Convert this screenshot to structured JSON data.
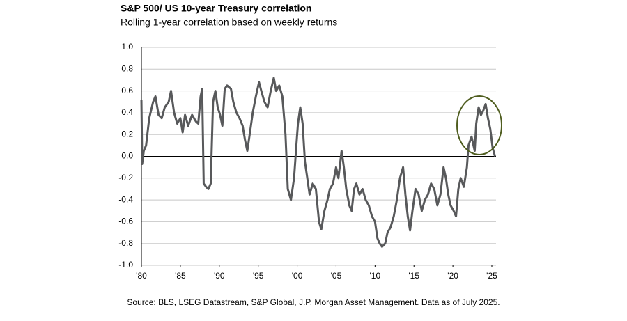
{
  "chart_data": {
    "type": "line",
    "title": "S&P 500/ US 10-year Treasury correlation",
    "subtitle": "Rolling 1-year correlation based on weekly returns",
    "source": "Source: BLS, LSEG Datastream, S&P Global, J.P. Morgan Asset Management. Data as of July 2025.",
    "x": [
      1980.0,
      1980.1,
      1980.3,
      1980.6,
      1981.0,
      1981.5,
      1981.8,
      1982.2,
      1982.6,
      1983.0,
      1983.5,
      1983.8,
      1984.2,
      1984.6,
      1985.0,
      1985.3,
      1985.6,
      1986.0,
      1986.5,
      1987.0,
      1987.3,
      1987.6,
      1987.8,
      1988.0,
      1988.3,
      1988.6,
      1988.9,
      1989.2,
      1989.5,
      1989.8,
      1990.1,
      1990.4,
      1990.7,
      1991.0,
      1991.5,
      1991.8,
      1992.2,
      1992.6,
      1993.0,
      1993.3,
      1993.6,
      1993.9,
      1994.3,
      1994.7,
      1995.1,
      1995.4,
      1995.8,
      1996.2,
      1996.6,
      1997.0,
      1997.3,
      1997.7,
      1998.1,
      1998.5,
      1998.8,
      1999.2,
      1999.6,
      1999.9,
      2000.1,
      2000.4,
      2000.7,
      2001.0,
      2001.3,
      2001.6,
      2002.0,
      2002.4,
      2002.8,
      2003.1,
      2003.5,
      2003.9,
      2004.2,
      2004.6,
      2005.0,
      2005.3,
      2005.7,
      2006.0,
      2006.3,
      2006.7,
      2007.0,
      2007.3,
      2007.6,
      2008.0,
      2008.4,
      2008.8,
      2009.2,
      2009.6,
      2010.0,
      2010.3,
      2010.6,
      2010.9,
      2011.3,
      2011.6,
      2012.0,
      2012.4,
      2012.8,
      2013.2,
      2013.6,
      2013.9,
      2014.2,
      2014.5,
      2014.8,
      2015.2,
      2015.6,
      2016.0,
      2016.4,
      2016.8,
      2017.2,
      2017.6,
      2018.0,
      2018.4,
      2018.8,
      2019.1,
      2019.4,
      2019.7,
      2020.1,
      2020.4,
      2020.7,
      2021.0,
      2021.4,
      2021.8,
      2022.0,
      2022.4,
      2022.8,
      2023.0,
      2023.3,
      2023.6,
      2023.9,
      2024.2,
      2024.5,
      2024.8,
      2025.1,
      2025.4
    ],
    "series": [
      {
        "name": "S&P 500/ US 10-year Treasury correlation",
        "color": "#58595b",
        "values": [
          0.52,
          -0.07,
          0.05,
          0.1,
          0.35,
          0.5,
          0.55,
          0.38,
          0.35,
          0.45,
          0.5,
          0.6,
          0.4,
          0.3,
          0.35,
          0.22,
          0.38,
          0.28,
          0.38,
          0.32,
          0.3,
          0.55,
          0.62,
          -0.25,
          -0.28,
          -0.3,
          -0.25,
          0.5,
          0.6,
          0.45,
          0.38,
          0.28,
          0.62,
          0.65,
          0.62,
          0.5,
          0.4,
          0.35,
          0.28,
          0.15,
          0.05,
          0.2,
          0.4,
          0.55,
          0.68,
          0.6,
          0.5,
          0.45,
          0.6,
          0.72,
          0.6,
          0.65,
          0.55,
          0.2,
          -0.3,
          -0.4,
          -0.2,
          0.1,
          0.3,
          0.45,
          0.3,
          -0.05,
          -0.2,
          -0.35,
          -0.25,
          -0.3,
          -0.6,
          -0.67,
          -0.5,
          -0.4,
          -0.3,
          -0.25,
          -0.1,
          -0.2,
          0.05,
          -0.1,
          -0.3,
          -0.45,
          -0.5,
          -0.3,
          -0.25,
          -0.35,
          -0.3,
          -0.4,
          -0.45,
          -0.55,
          -0.6,
          -0.75,
          -0.8,
          -0.83,
          -0.8,
          -0.7,
          -0.65,
          -0.55,
          -0.4,
          -0.2,
          -0.1,
          -0.35,
          -0.55,
          -0.68,
          -0.5,
          -0.3,
          -0.35,
          -0.5,
          -0.4,
          -0.35,
          -0.25,
          -0.3,
          -0.45,
          -0.35,
          -0.1,
          -0.2,
          -0.35,
          -0.45,
          -0.5,
          -0.55,
          -0.3,
          -0.2,
          -0.28,
          -0.1,
          0.1,
          0.18,
          0.05,
          0.3,
          0.45,
          0.38,
          0.42,
          0.48,
          0.35,
          0.25,
          0.08,
          0.0
        ]
      }
    ],
    "xlim": [
      1980,
      2025
    ],
    "xticks": [
      {
        "value": 1980,
        "label": "'80"
      },
      {
        "value": 1985,
        "label": "'85"
      },
      {
        "value": 1990,
        "label": "'90"
      },
      {
        "value": 1995,
        "label": "'95"
      },
      {
        "value": 2000,
        "label": "'00"
      },
      {
        "value": 2005,
        "label": "'05"
      },
      {
        "value": 2010,
        "label": "'10"
      },
      {
        "value": 2015,
        "label": "'15"
      },
      {
        "value": 2020,
        "label": "'20"
      },
      {
        "value": 2025,
        "label": "'25"
      }
    ],
    "ylim": [
      -1,
      1
    ],
    "yticks": [
      {
        "value": 1,
        "label": "1.0"
      },
      0.8,
      0.6,
      0.4,
      0.2,
      {
        "value": 0,
        "label": "0.0"
      },
      -0.2,
      -0.4,
      -0.6,
      -0.8,
      {
        "value": -1,
        "label": "-1.0"
      }
    ],
    "grid": true
  }
}
